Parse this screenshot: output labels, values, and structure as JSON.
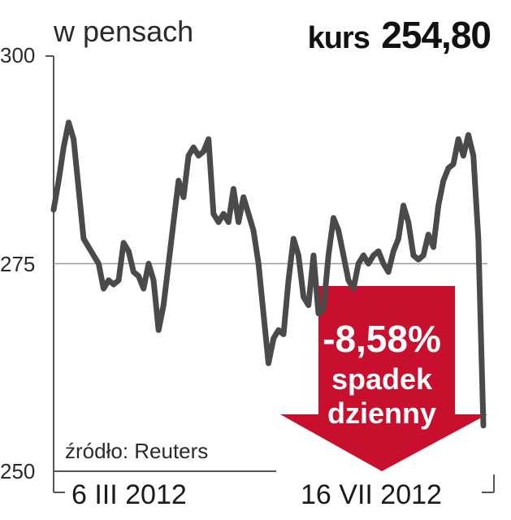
{
  "chart_data": {
    "type": "line",
    "unit_label": "w pensach",
    "price_label": "kurs",
    "price_value": "254,80",
    "ylim": [
      250,
      300
    ],
    "y_ticks": [
      "300",
      "275",
      "250"
    ],
    "x_ticks": [
      "6 III 2012",
      "16 VII 2012"
    ],
    "source": "źródło: Reuters",
    "badge": {
      "change": "-8,58%",
      "line1": "spadek",
      "line2": "dzienny"
    },
    "colors": {
      "line": "#4a4a4a",
      "badge": "#c8102e",
      "grid": "#9a9a9a"
    },
    "series": [
      {
        "values": [
          281.5,
          285,
          289,
          292,
          290,
          284,
          278,
          277,
          276,
          275,
          272,
          273,
          272.5,
          273,
          277.5,
          276.5,
          274,
          273.5,
          272,
          275,
          273,
          267,
          270,
          275,
          280,
          285,
          283,
          288,
          289,
          288,
          288.5,
          290,
          281,
          280,
          281,
          280,
          284,
          280,
          283,
          281,
          279,
          275,
          269,
          263,
          266,
          267,
          266.5,
          273,
          278,
          276,
          271,
          270,
          276,
          269,
          269.5,
          276,
          280.5,
          279,
          276,
          273,
          272,
          275,
          276,
          275,
          276,
          276.5,
          275,
          274,
          276.5,
          278,
          282,
          280,
          276,
          275.5,
          276,
          278.5,
          277,
          282,
          285,
          286.5,
          287,
          290,
          288,
          290.5,
          288,
          278,
          255.5
        ]
      }
    ]
  }
}
